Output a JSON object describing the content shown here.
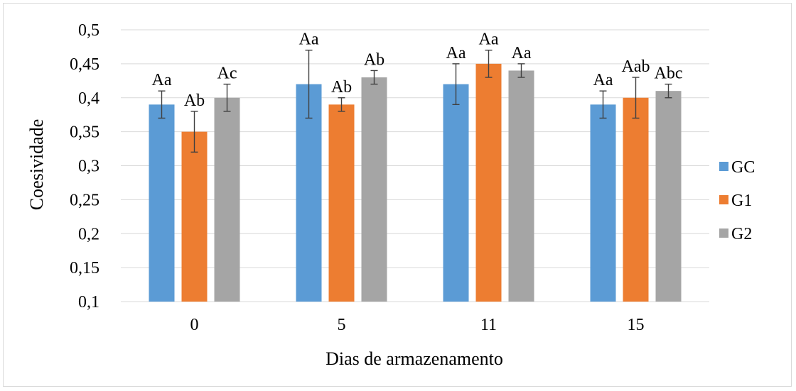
{
  "chart_data": {
    "type": "bar",
    "xlabel": "Dias de armazenamento",
    "ylabel": "Coesividade",
    "ylim": [
      0.1,
      0.5
    ],
    "ytick_step": 0.05,
    "ytick_labels": [
      "0,1",
      "0,15",
      "0,2",
      "0,25",
      "0,3",
      "0,35",
      "0,4",
      "0,45",
      "0,5"
    ],
    "categories": [
      "0",
      "5",
      "11",
      "15"
    ],
    "grid": true,
    "legend_position": "right",
    "series": [
      {
        "name": "GC",
        "color": "#5b9bd5",
        "values": [
          0.39,
          0.42,
          0.42,
          0.39
        ],
        "errors": [
          0.02,
          0.05,
          0.03,
          0.02
        ],
        "labels": [
          "Aa",
          "Aa",
          "Aa",
          "Aa"
        ]
      },
      {
        "name": "G1",
        "color": "#ed7d31",
        "values": [
          0.35,
          0.39,
          0.45,
          0.4
        ],
        "errors": [
          0.03,
          0.01,
          0.02,
          0.03
        ],
        "labels": [
          "Ab",
          "Ab",
          "Aa",
          "Aab"
        ]
      },
      {
        "name": "G2",
        "color": "#a5a5a5",
        "values": [
          0.4,
          0.43,
          0.44,
          0.41
        ],
        "errors": [
          0.02,
          0.01,
          0.01,
          0.01
        ],
        "labels": [
          "Ac",
          "Ab",
          "Aa",
          "Abc"
        ]
      }
    ]
  }
}
